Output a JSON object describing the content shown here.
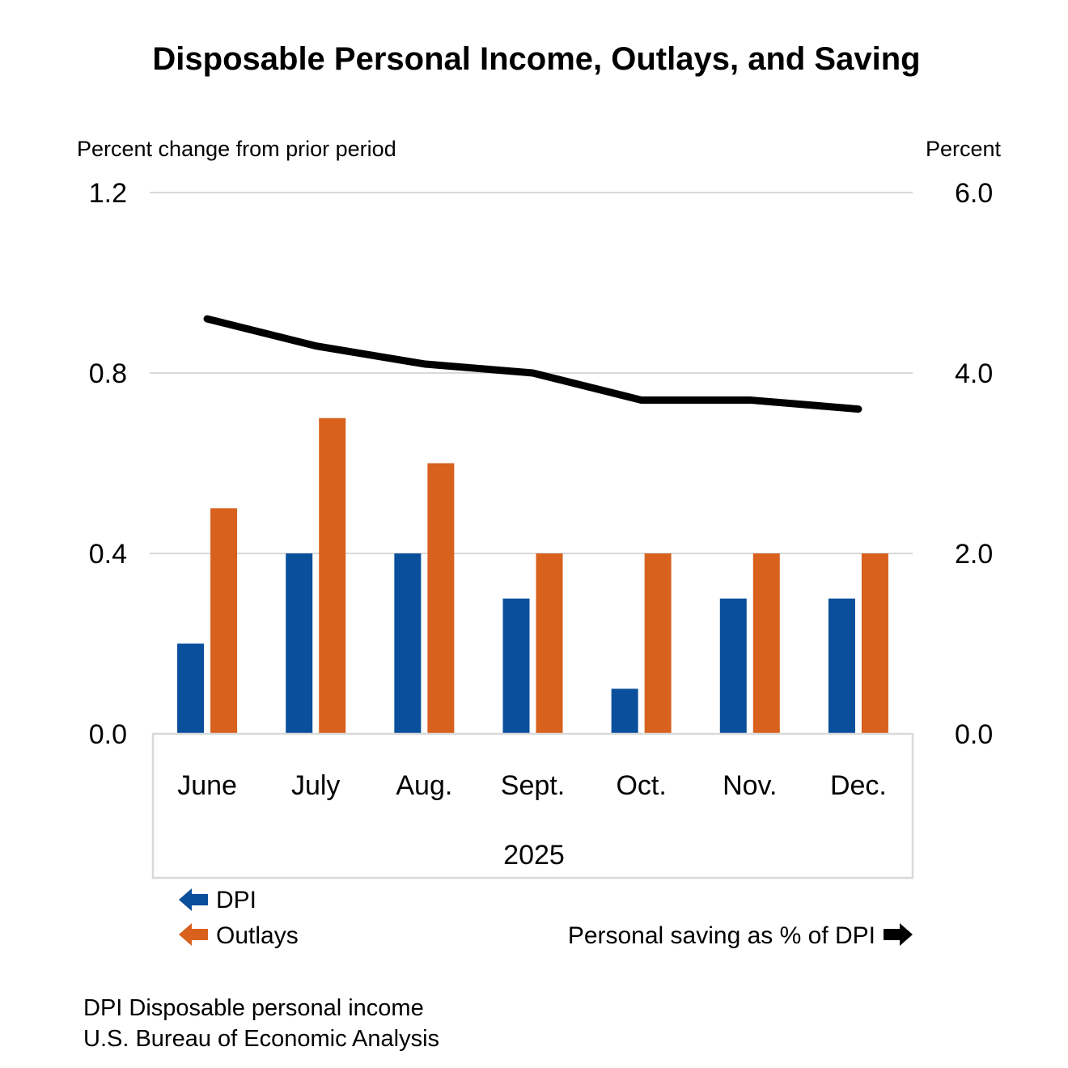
{
  "title": "Disposable Personal Income, Outlays, and Saving",
  "axes": {
    "left": {
      "caption": "Percent change from prior period",
      "ticks": [
        "0.0",
        "0.4",
        "0.8",
        "1.2"
      ],
      "max": 1.2
    },
    "right": {
      "caption": "Percent",
      "ticks": [
        "0.0",
        "2.0",
        "4.0",
        "6.0"
      ],
      "max": 6.0
    }
  },
  "chart_data": {
    "type": "bar",
    "categories": [
      "June",
      "July",
      "Aug.",
      "Sept.",
      "Oct.",
      "Nov.",
      "Dec."
    ],
    "x_group_label": "2025",
    "left_ylim": [
      0,
      1.2
    ],
    "right_ylim": [
      0,
      6.0
    ],
    "grid": "horizontal",
    "legend_position": "bottom",
    "series": [
      {
        "name": "DPI",
        "type": "bar",
        "axis": "left",
        "color": "#0a4f9b",
        "values": [
          0.2,
          0.4,
          0.4,
          0.3,
          0.1,
          0.3,
          0.3
        ]
      },
      {
        "name": "Outlays",
        "type": "bar",
        "axis": "left",
        "color": "#d7611d",
        "values": [
          0.5,
          0.7,
          0.6,
          0.4,
          0.4,
          0.4,
          0.4
        ]
      },
      {
        "name": "Personal saving as % of DPI",
        "type": "line",
        "axis": "right",
        "color": "#000000",
        "values": [
          4.6,
          4.3,
          4.1,
          4.0,
          3.7,
          3.7,
          3.6
        ]
      }
    ]
  },
  "colors": {
    "gridline": "#d9d9d9",
    "axis_box": "#d9d9d9",
    "text": "#000000"
  },
  "footnotes": {
    "line1": "DPI Disposable personal income",
    "line2": "U.S. Bureau of Economic Analysis"
  }
}
